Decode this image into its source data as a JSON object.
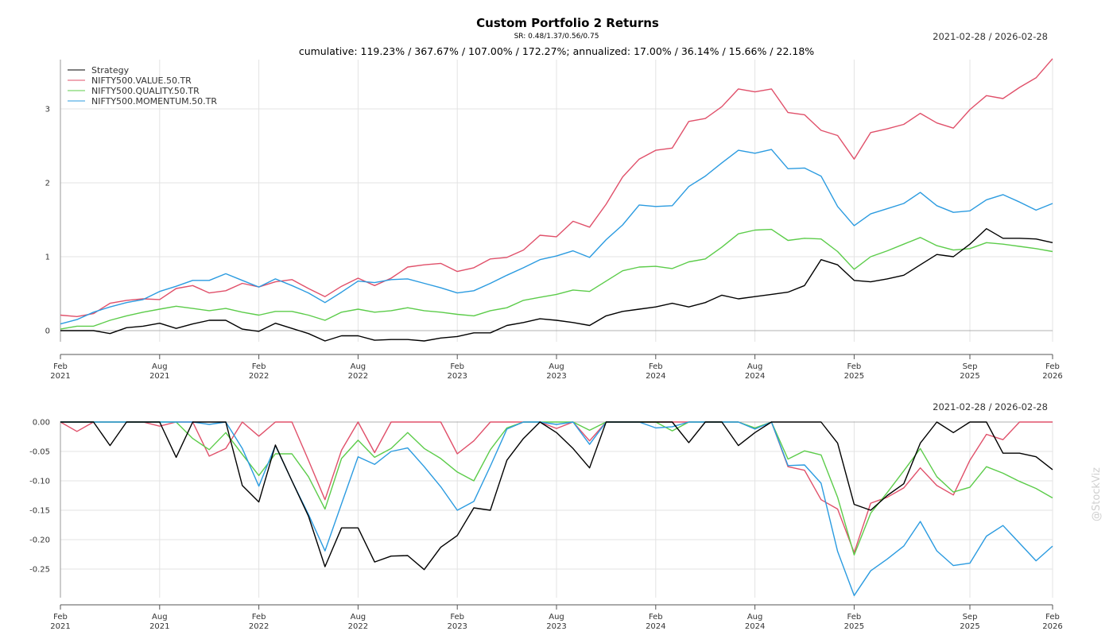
{
  "title": "Custom Portfolio 2 Returns",
  "subtitle": "SR: 0.48/1.37/0.56/0.75",
  "stats_line": "cumulative: 119.23% / 367.67% / 107.00% / 172.27%; annualized: 17.00% / 36.14% / 15.66% / 22.18%",
  "date_range": "2021-02-28 / 2026-02-28",
  "watermark": "@StockViz",
  "colors": {
    "Strategy": "#000000",
    "NIFTY500.VALUE.50.TR": "#e0506a",
    "NIFTY500.QUALITY.50.TR": "#5ccc4a",
    "NIFTY500.MOMENTUM.50.TR": "#2b9be0",
    "grid": "#e3e3e3",
    "axis": "#9a9a9a"
  },
  "chart_data": [
    {
      "type": "line",
      "panel": "cumulative-returns",
      "date_range": "2021-02-28 / 2026-02-28",
      "x": [
        "2021-02",
        "2021-03",
        "2021-04",
        "2021-05",
        "2021-06",
        "2021-07",
        "2021-08",
        "2021-09",
        "2021-10",
        "2021-11",
        "2021-12",
        "2022-01",
        "2022-02",
        "2022-03",
        "2022-04",
        "2022-05",
        "2022-06",
        "2022-07",
        "2022-08",
        "2022-09",
        "2022-10",
        "2022-11",
        "2022-12",
        "2023-01",
        "2023-02",
        "2023-03",
        "2023-04",
        "2023-05",
        "2023-06",
        "2023-07",
        "2023-08",
        "2023-09",
        "2023-10",
        "2023-11",
        "2023-12",
        "2024-01",
        "2024-02",
        "2024-03",
        "2024-04",
        "2024-05",
        "2024-06",
        "2024-07",
        "2024-08",
        "2024-09",
        "2024-10",
        "2024-11",
        "2024-12",
        "2025-01",
        "2025-02",
        "2025-03",
        "2025-04",
        "2025-05",
        "2025-06",
        "2025-07",
        "2025-08",
        "2025-09",
        "2025-10",
        "2025-11",
        "2025-12",
        "2026-01",
        "2026-02"
      ],
      "x_ticks": [
        {
          "at": "2021-02",
          "month": "Feb",
          "year": "2021"
        },
        {
          "at": "2021-08",
          "month": "Aug",
          "year": "2021"
        },
        {
          "at": "2022-02",
          "month": "Feb",
          "year": "2022"
        },
        {
          "at": "2022-08",
          "month": "Aug",
          "year": "2022"
        },
        {
          "at": "2023-02",
          "month": "Feb",
          "year": "2023"
        },
        {
          "at": "2023-08",
          "month": "Aug",
          "year": "2023"
        },
        {
          "at": "2024-02",
          "month": "Feb",
          "year": "2024"
        },
        {
          "at": "2024-08",
          "month": "Aug",
          "year": "2024"
        },
        {
          "at": "2025-02",
          "month": "Feb",
          "year": "2025"
        },
        {
          "at": "2025-09",
          "month": "Sep",
          "year": "2025"
        },
        {
          "at": "2026-02",
          "month": "Feb",
          "year": "2026"
        }
      ],
      "ylim": [
        -0.25,
        3.65
      ],
      "y_ticks": [
        0,
        1,
        2,
        3
      ],
      "y_tick_labels": [
        "0",
        "1",
        "2",
        "3"
      ],
      "grid": true,
      "legend": "top-left",
      "series": [
        {
          "name": "Strategy",
          "values": [
            0.0,
            0.0,
            0.0,
            -0.04,
            0.04,
            0.06,
            0.1,
            0.03,
            0.09,
            0.14,
            0.14,
            0.02,
            -0.01,
            0.1,
            0.03,
            -0.04,
            -0.14,
            -0.07,
            -0.07,
            -0.13,
            -0.12,
            -0.12,
            -0.14,
            -0.1,
            -0.08,
            -0.03,
            -0.03,
            0.07,
            0.11,
            0.16,
            0.14,
            0.11,
            0.07,
            0.2,
            0.26,
            0.29,
            0.32,
            0.37,
            0.32,
            0.38,
            0.48,
            0.43,
            0.46,
            0.49,
            0.52,
            0.61,
            0.96,
            0.89,
            0.68,
            0.66,
            0.7,
            0.75,
            0.89,
            1.03,
            1.0,
            1.17,
            1.38,
            1.25,
            1.25,
            1.24,
            1.19
          ]
        },
        {
          "name": "NIFTY500.VALUE.50.TR",
          "values": [
            0.21,
            0.19,
            0.23,
            0.37,
            0.41,
            0.43,
            0.42,
            0.57,
            0.61,
            0.51,
            0.54,
            0.64,
            0.59,
            0.66,
            0.69,
            0.57,
            0.46,
            0.6,
            0.71,
            0.61,
            0.71,
            0.86,
            0.89,
            0.91,
            0.8,
            0.85,
            0.97,
            0.99,
            1.09,
            1.29,
            1.27,
            1.48,
            1.4,
            1.71,
            2.08,
            2.32,
            2.44,
            2.47,
            2.83,
            2.87,
            3.03,
            3.27,
            3.23,
            3.27,
            2.95,
            2.92,
            2.71,
            2.64,
            2.32,
            2.68,
            2.73,
            2.79,
            2.94,
            2.81,
            2.74,
            2.99,
            3.18,
            3.14,
            3.29,
            3.42,
            3.68
          ]
        },
        {
          "name": "NIFTY500.QUALITY.50.TR",
          "values": [
            0.02,
            0.06,
            0.06,
            0.14,
            0.2,
            0.25,
            0.29,
            0.33,
            0.3,
            0.27,
            0.3,
            0.25,
            0.21,
            0.26,
            0.26,
            0.21,
            0.14,
            0.25,
            0.29,
            0.25,
            0.27,
            0.31,
            0.27,
            0.25,
            0.22,
            0.2,
            0.27,
            0.31,
            0.41,
            0.45,
            0.49,
            0.55,
            0.53,
            0.67,
            0.81,
            0.86,
            0.87,
            0.84,
            0.93,
            0.97,
            1.13,
            1.31,
            1.36,
            1.37,
            1.22,
            1.25,
            1.24,
            1.07,
            0.83,
            1.0,
            1.08,
            1.17,
            1.26,
            1.15,
            1.09,
            1.11,
            1.19,
            1.17,
            1.14,
            1.11,
            1.07
          ]
        },
        {
          "name": "NIFTY500.MOMENTUM.50.TR",
          "values": [
            0.09,
            0.15,
            0.25,
            0.32,
            0.38,
            0.42,
            0.53,
            0.6,
            0.68,
            0.68,
            0.77,
            0.68,
            0.59,
            0.7,
            0.61,
            0.51,
            0.38,
            0.52,
            0.67,
            0.65,
            0.69,
            0.7,
            0.64,
            0.58,
            0.51,
            0.54,
            0.64,
            0.75,
            0.85,
            0.96,
            1.01,
            1.08,
            0.99,
            1.23,
            1.43,
            1.7,
            1.68,
            1.69,
            1.95,
            2.09,
            2.27,
            2.44,
            2.4,
            2.45,
            2.19,
            2.2,
            2.09,
            1.68,
            1.42,
            1.58,
            1.65,
            1.72,
            1.87,
            1.69,
            1.6,
            1.62,
            1.77,
            1.84,
            1.74,
            1.63,
            1.72
          ]
        }
      ]
    },
    {
      "type": "line",
      "panel": "drawdown",
      "date_range": "2021-02-28 / 2026-02-28",
      "x": [
        "2021-02",
        "2021-03",
        "2021-04",
        "2021-05",
        "2021-06",
        "2021-07",
        "2021-08",
        "2021-09",
        "2021-10",
        "2021-11",
        "2021-12",
        "2022-01",
        "2022-02",
        "2022-03",
        "2022-04",
        "2022-05",
        "2022-06",
        "2022-07",
        "2022-08",
        "2022-09",
        "2022-10",
        "2022-11",
        "2022-12",
        "2023-01",
        "2023-02",
        "2023-03",
        "2023-04",
        "2023-05",
        "2023-06",
        "2023-07",
        "2023-08",
        "2023-09",
        "2023-10",
        "2023-11",
        "2023-12",
        "2024-01",
        "2024-02",
        "2024-03",
        "2024-04",
        "2024-05",
        "2024-06",
        "2024-07",
        "2024-08",
        "2024-09",
        "2024-10",
        "2024-11",
        "2024-12",
        "2025-01",
        "2025-02",
        "2025-03",
        "2025-04",
        "2025-05",
        "2025-06",
        "2025-07",
        "2025-08",
        "2025-09",
        "2025-10",
        "2025-11",
        "2025-12",
        "2026-01",
        "2026-02"
      ],
      "x_ticks": [
        {
          "at": "2021-02",
          "month": "Feb",
          "year": "2021"
        },
        {
          "at": "2021-08",
          "month": "Aug",
          "year": "2021"
        },
        {
          "at": "2022-02",
          "month": "Feb",
          "year": "2022"
        },
        {
          "at": "2022-08",
          "month": "Aug",
          "year": "2022"
        },
        {
          "at": "2023-02",
          "month": "Feb",
          "year": "2023"
        },
        {
          "at": "2023-08",
          "month": "Aug",
          "year": "2023"
        },
        {
          "at": "2024-02",
          "month": "Feb",
          "year": "2024"
        },
        {
          "at": "2024-08",
          "month": "Aug",
          "year": "2024"
        },
        {
          "at": "2025-02",
          "month": "Feb",
          "year": "2025"
        },
        {
          "at": "2025-09",
          "month": "Sep",
          "year": "2025"
        },
        {
          "at": "2026-02",
          "month": "Feb",
          "year": "2026"
        }
      ],
      "ylim": [
        -0.295,
        0.0
      ],
      "y_ticks": [
        0,
        -0.05,
        -0.1,
        -0.15,
        -0.2,
        -0.25
      ],
      "y_tick_labels": [
        "0.00",
        "-0.05",
        "-0.10",
        "-0.15",
        "-0.20",
        "-0.25"
      ],
      "grid": true,
      "series": [
        {
          "name": "Strategy",
          "values": [
            0.0,
            0.0,
            0.0,
            -0.04,
            0.0,
            0.0,
            0.0,
            -0.06,
            0.0,
            0.0,
            0.0,
            -0.108,
            -0.136,
            -0.039,
            -0.1,
            -0.16,
            -0.246,
            -0.18,
            -0.18,
            -0.238,
            -0.228,
            -0.227,
            -0.251,
            -0.213,
            -0.193,
            -0.146,
            -0.15,
            -0.065,
            -0.028,
            0.0,
            -0.018,
            -0.045,
            -0.078,
            0.0,
            0.0,
            0.0,
            0.0,
            0.0,
            -0.035,
            0.0,
            0.0,
            -0.04,
            -0.018,
            0.0,
            0.0,
            0.0,
            0.0,
            -0.036,
            -0.14,
            -0.15,
            -0.125,
            -0.105,
            -0.036,
            0.0,
            -0.018,
            0.0,
            0.0,
            -0.053,
            -0.053,
            -0.059,
            -0.081
          ]
        },
        {
          "name": "NIFTY500.VALUE.50.TR",
          "values": [
            0.0,
            -0.016,
            0.0,
            0.0,
            0.0,
            0.0,
            -0.007,
            0.0,
            0.0,
            -0.058,
            -0.045,
            0.0,
            -0.024,
            0.0,
            0.0,
            -0.065,
            -0.132,
            -0.048,
            0.0,
            -0.052,
            0.0,
            0.0,
            0.0,
            0.0,
            -0.054,
            -0.032,
            0.0,
            0.0,
            0.0,
            0.0,
            -0.011,
            0.0,
            -0.032,
            0.0,
            0.0,
            0.0,
            0.0,
            0.0,
            0.0,
            0.0,
            0.0,
            0.0,
            -0.011,
            0.0,
            -0.076,
            -0.082,
            -0.132,
            -0.148,
            -0.222,
            -0.138,
            -0.128,
            -0.112,
            -0.078,
            -0.108,
            -0.124,
            -0.065,
            -0.021,
            -0.03,
            0.0,
            0.0,
            0.0
          ]
        },
        {
          "name": "NIFTY500.QUALITY.50.TR",
          "values": [
            0.0,
            0.0,
            0.0,
            0.0,
            0.0,
            0.0,
            0.0,
            0.0,
            -0.028,
            -0.047,
            -0.018,
            -0.055,
            -0.091,
            -0.054,
            -0.054,
            -0.093,
            -0.148,
            -0.062,
            -0.031,
            -0.06,
            -0.045,
            -0.018,
            -0.045,
            -0.062,
            -0.085,
            -0.1,
            -0.047,
            -0.01,
            0.0,
            0.0,
            0.0,
            0.0,
            -0.014,
            0.0,
            0.0,
            0.0,
            0.0,
            -0.015,
            0.0,
            0.0,
            0.0,
            0.0,
            -0.01,
            0.0,
            -0.063,
            -0.049,
            -0.056,
            -0.128,
            -0.226,
            -0.155,
            -0.12,
            -0.083,
            -0.045,
            -0.093,
            -0.119,
            -0.111,
            -0.076,
            -0.087,
            -0.101,
            -0.113,
            -0.129
          ]
        },
        {
          "name": "NIFTY500.MOMENTUM.50.TR",
          "values": [
            0.0,
            0.0,
            0.0,
            0.0,
            0.0,
            0.0,
            0.0,
            0.0,
            0.0,
            -0.004,
            0.0,
            -0.045,
            -0.109,
            -0.04,
            -0.1,
            -0.157,
            -0.219,
            -0.139,
            -0.059,
            -0.072,
            -0.05,
            -0.044,
            -0.076,
            -0.11,
            -0.15,
            -0.135,
            -0.075,
            -0.012,
            0.0,
            0.0,
            -0.004,
            0.0,
            -0.038,
            0.0,
            0.0,
            0.0,
            -0.01,
            -0.008,
            0.0,
            0.0,
            0.0,
            0.0,
            -0.012,
            0.0,
            -0.074,
            -0.073,
            -0.104,
            -0.22,
            -0.295,
            -0.253,
            -0.233,
            -0.211,
            -0.169,
            -0.219,
            -0.244,
            -0.24,
            -0.194,
            -0.176,
            -0.206,
            -0.236,
            -0.211
          ]
        }
      ]
    }
  ]
}
